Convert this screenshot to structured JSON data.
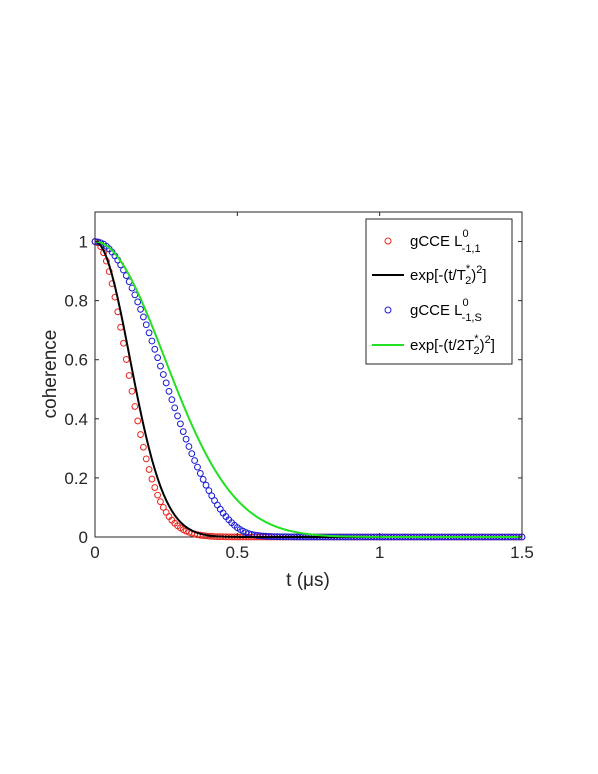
{
  "chart_data": {
    "type": "scatter",
    "xlabel": "t (μs)",
    "ylabel": "coherence",
    "xlim": [
      0,
      1.5
    ],
    "ylim": [
      0,
      1.1
    ],
    "xticks": [
      0,
      0.5,
      1,
      1.5
    ],
    "xtick_labels": [
      "0",
      "0.5",
      "1",
      "1.5"
    ],
    "yticks": [
      0,
      0.2,
      0.4,
      0.6,
      0.8,
      1
    ],
    "ytick_labels": [
      "0",
      "0.2",
      "0.4",
      "0.6",
      "0.8",
      "1"
    ],
    "grid": false,
    "legend_position": "top-right",
    "sample_x": [
      0,
      0.01,
      0.02,
      0.03,
      0.04,
      0.05,
      0.06,
      0.07,
      0.08,
      0.09,
      0.1,
      0.11,
      0.12,
      0.13,
      0.14,
      0.15,
      0.16,
      0.17,
      0.18,
      0.19,
      0.2,
      0.21,
      0.22,
      0.23,
      0.24,
      0.25,
      0.26,
      0.27,
      0.28,
      0.29,
      0.3,
      0.31,
      0.32,
      0.33,
      0.34,
      0.35,
      0.36,
      0.37,
      0.38,
      0.39,
      0.4,
      0.41,
      0.42,
      0.43,
      0.44,
      0.45,
      0.46,
      0.47,
      0.48,
      0.49,
      0.5,
      0.51,
      0.52,
      0.53,
      0.54,
      0.55,
      0.56,
      0.57,
      0.58,
      0.59,
      0.6,
      0.61,
      0.62,
      0.63,
      0.64,
      0.65,
      0.66,
      0.67,
      0.68,
      0.69,
      0.7,
      0.71,
      0.72,
      0.73,
      0.74,
      0.75,
      0.76,
      0.77,
      0.78,
      0.79,
      0.8,
      0.81,
      0.82,
      0.83,
      0.84,
      0.85,
      0.86,
      0.87,
      0.88,
      0.89,
      0.9,
      0.91,
      0.92,
      0.93,
      0.94,
      0.95,
      0.96,
      0.97,
      0.98,
      0.99,
      1,
      1.01,
      1.02,
      1.03,
      1.04,
      1.05,
      1.06,
      1.07,
      1.08,
      1.09,
      1.1,
      1.11,
      1.12,
      1.13,
      1.14,
      1.15,
      1.16,
      1.17,
      1.18,
      1.19,
      1.2,
      1.21,
      1.22,
      1.23,
      1.24,
      1.25,
      1.26,
      1.27,
      1.28,
      1.29,
      1.3,
      1.31,
      1.32,
      1.33,
      1.34,
      1.35,
      1.36,
      1.37,
      1.38,
      1.39,
      1.4,
      1.41,
      1.42,
      1.43,
      1.44,
      1.45,
      1.46,
      1.47,
      1.48,
      1.49,
      1.5
    ],
    "series": [
      {
        "name": "gCCE L⁰₋₁,₁",
        "legend_main": "gCCE L",
        "legend_sup": "0",
        "legend_sub": "-1,1",
        "kind": "markers",
        "color": "#e8241c",
        "values": [
          1.0,
          0.9957,
          0.9829,
          0.9621,
          0.9337,
          0.8986,
          0.8576,
          0.8118,
          0.7621,
          0.7097,
          0.6557,
          0.601,
          0.5465,
          0.4933,
          0.4418,
          0.3928,
          0.3467,
          0.3038,
          0.2644,
          0.2285,
          0.1961,
          0.1673,
          0.1418,
          0.1195,
          0.1001,
          0.0834,
          0.0691,
          0.0569,
          0.0466,
          0.038,
          0.0308,
          0.0249,
          0.02,
          0.016,
          0.0127,
          0.0101,
          0.0079,
          0.0062,
          0.0049,
          0.0038,
          0.0029,
          0.0023,
          0.0017,
          0.0013,
          0.001,
          0.0008,
          0.0006,
          0.0004,
          0.0003,
          0.0003,
          0.0002,
          0.0001,
          0.0001,
          0.0001,
          0.0001,
          0.0,
          0.0,
          0.0,
          0.0,
          0.0,
          0.0,
          0.0,
          0.0,
          0.0,
          0.0,
          0.0,
          0.0,
          0.0,
          0.0,
          0.0,
          0.0,
          0.0,
          0.0,
          0.0,
          0.0,
          0.0,
          0.0,
          0.0,
          0.0,
          0.0,
          0.0,
          0.0,
          0.0,
          0.0,
          0.0,
          0.0,
          0.0,
          0.0,
          0.0,
          0.0,
          0.0,
          0.0,
          0.0,
          0.0,
          0.0,
          0.0,
          0.0,
          0.0,
          0.0,
          0.0,
          0.0,
          0.0,
          0.0,
          0.0,
          0.0,
          0.0,
          0.0,
          0.0,
          0.0,
          0.0,
          0.0,
          0.0,
          0.0,
          0.0,
          0.0,
          0.0,
          0.0,
          0.0,
          0.0,
          0.0,
          0.0,
          0.0,
          0.0,
          0.0,
          0.0,
          0.0,
          0.0,
          0.0,
          0.0,
          0.0,
          0.0,
          0.0,
          0.0,
          0.0,
          0.0,
          0.0,
          0.0,
          0.0,
          0.0,
          0.0,
          0.0,
          0.0,
          0.0,
          0.0,
          0.0,
          0.0,
          0.0,
          0.0,
          0.0,
          0.0,
          0.0
        ]
      },
      {
        "name": "exp[-(t/T₂*)²]",
        "legend_main": "exp[-(t/T",
        "legend_sup": "*",
        "legend_sub": "2",
        "legend_tail": ")",
        "legend_tail_sup": "2",
        "legend_end": "]",
        "kind": "line",
        "color": "#000000",
        "values": [
          1.0,
          0.9966,
          0.9866,
          0.9702,
          0.9477,
          0.9196,
          0.8863,
          0.8486,
          0.8071,
          0.7624,
          0.7155,
          0.6669,
          0.6175,
          0.568,
          0.5189,
          0.4708,
          0.4244,
          0.38,
          0.338,
          0.2987,
          0.2623,
          0.2289,
          0.1985,
          0.171,
          0.1464,
          0.1246,
          0.1054,
          0.0885,
          0.0739,
          0.0613,
          0.0506,
          0.0415,
          0.0338,
          0.0274,
          0.022,
          0.0176,
          0.014,
          0.011,
          0.0087,
          0.0068,
          0.0052,
          0.004,
          0.0031,
          0.0023,
          0.0018,
          0.0013,
          0.001,
          0.0007,
          0.0005,
          0.0004,
          0.0003,
          0.0002,
          0.0001,
          0.0001,
          0.0001,
          0.0,
          0.0,
          0.0,
          0.0,
          0.0,
          0.0,
          0.0,
          0.0,
          0.0,
          0.0,
          0.0,
          0.0,
          0.0,
          0.0,
          0.0,
          0.0,
          0.0,
          0.0,
          0.0,
          0.0,
          0.0,
          0.0,
          0.0,
          0.0,
          0.0,
          0.0,
          0.0,
          0.0,
          0.0,
          0.0,
          0.0,
          0.0,
          0.0,
          0.0,
          0.0,
          0.0,
          0.0,
          0.0,
          0.0,
          0.0,
          0.0,
          0.0,
          0.0,
          0.0,
          0.0,
          0.0,
          0.0,
          0.0,
          0.0,
          0.0,
          0.0,
          0.0,
          0.0,
          0.0,
          0.0,
          0.0,
          0.0,
          0.0,
          0.0,
          0.0,
          0.0,
          0.0,
          0.0,
          0.0,
          0.0,
          0.0,
          0.0,
          0.0,
          0.0,
          0.0,
          0.0,
          0.0,
          0.0,
          0.0,
          0.0,
          0.0,
          0.0,
          0.0,
          0.0,
          0.0,
          0.0,
          0.0,
          0.0,
          0.0,
          0.0,
          0.0,
          0.0,
          0.0,
          0.0,
          0.0,
          0.0,
          0.0,
          0.0,
          0.0,
          0.0,
          0.0
        ]
      },
      {
        "name": "gCCE L⁰₋₁,S",
        "legend_main": "gCCE L",
        "legend_sup": "0",
        "legend_sub": "-1,S",
        "kind": "markers",
        "color": "#1a1ad6",
        "values": [
          1.0,
          0.999,
          0.996,
          0.991,
          0.984,
          0.975,
          0.9642,
          0.9516,
          0.9373,
          0.9213,
          0.9037,
          0.8847,
          0.8643,
          0.8425,
          0.8196,
          0.7956,
          0.7707,
          0.7448,
          0.7183,
          0.6911,
          0.6634,
          0.6353,
          0.607,
          0.5784,
          0.5499,
          0.5214,
          0.493,
          0.4649,
          0.4371,
          0.4098,
          0.383,
          0.3567,
          0.3311,
          0.3062,
          0.2821,
          0.2589,
          0.2365,
          0.2152,
          0.1948,
          0.1754,
          0.157,
          0.1397,
          0.1234,
          0.1082,
          0.0941,
          0.0811,
          0.0692,
          0.0583,
          0.0485,
          0.0397,
          0.032,
          0.0253,
          0.0197,
          0.0151,
          0.0115,
          0.0088,
          0.0068,
          0.0053,
          0.0042,
          0.0033,
          0.0027,
          0.0021,
          0.0017,
          0.0014,
          0.0011,
          0.0009,
          0.0007,
          0.0006,
          0.0005,
          0.0004,
          0.0003,
          0.0003,
          0.0002,
          0.0002,
          0.0001,
          0.0001,
          0.0001,
          0.0001,
          0.0001,
          0.0,
          0.0,
          0.0,
          0.0,
          0.0,
          0.0,
          0.0,
          0.0,
          0.0,
          0.0,
          0.0,
          0.0,
          0.0,
          0.0,
          0.0,
          0.0,
          0.0,
          0.0,
          0.0,
          0.0,
          0.0,
          0.0,
          0.0,
          0.0,
          0.0,
          0.0,
          0.0,
          0.0,
          0.0,
          0.0,
          0.0,
          0.0,
          0.0,
          0.0,
          0.0,
          0.0,
          0.0,
          0.0,
          0.0,
          0.0,
          0.0,
          0.0,
          0.0,
          0.0,
          0.0,
          0.0,
          0.0,
          0.0,
          0.0,
          0.0,
          0.0,
          0.0,
          0.0,
          0.0,
          0.0,
          0.0,
          0.0,
          0.0,
          0.0,
          0.0,
          0.0,
          0.0,
          0.0,
          0.0,
          0.0,
          0.0,
          0.0,
          0.0,
          0.0,
          0.0,
          0.0,
          0.0
        ]
      },
      {
        "name": "exp[-(t/2T₂*)²]",
        "legend_main": "exp[-(t/2T",
        "legend_sup": "*",
        "legend_sub": "2",
        "legend_tail": ")",
        "legend_tail_sup": "2",
        "legend_end": "]",
        "kind": "line",
        "color": "#22e022",
        "values": [
          1.0,
          0.9991,
          0.9966,
          0.9924,
          0.9866,
          0.9792,
          0.9702,
          0.9598,
          0.9477,
          0.9343,
          0.9196,
          0.9035,
          0.8863,
          0.8679,
          0.8486,
          0.8283,
          0.8071,
          0.7851,
          0.7624,
          0.7392,
          0.7155,
          0.6913,
          0.6669,
          0.6423,
          0.6175,
          0.5928,
          0.568,
          0.5434,
          0.5189,
          0.4947,
          0.4708,
          0.4474,
          0.4244,
          0.4019,
          0.38,
          0.3587,
          0.338,
          0.318,
          0.2987,
          0.2802,
          0.2623,
          0.2452,
          0.2289,
          0.2134,
          0.1985,
          0.1844,
          0.171,
          0.1584,
          0.1464,
          0.1352,
          0.1246,
          0.1147,
          0.1054,
          0.0967,
          0.0885,
          0.0809,
          0.0739,
          0.0673,
          0.0613,
          0.0557,
          0.0506,
          0.0458,
          0.0415,
          0.0375,
          0.0338,
          0.0305,
          0.0274,
          0.0246,
          0.022,
          0.0197,
          0.0176,
          0.0157,
          0.014,
          0.0124,
          0.011,
          0.0098,
          0.0087,
          0.0077,
          0.0068,
          0.006,
          0.0052,
          0.0046,
          0.004,
          0.0035,
          0.0031,
          0.0027,
          0.0023,
          0.002,
          0.0018,
          0.0015,
          0.0013,
          0.0011,
          0.001,
          0.0008,
          0.0007,
          0.0006,
          0.0005,
          0.0005,
          0.0004,
          0.0003,
          0.0003,
          0.0002,
          0.0002,
          0.0002,
          0.0001,
          0.0001,
          0.0001,
          0.0001,
          0.0001,
          0.0001,
          0.0001,
          0.0,
          0.0,
          0.0,
          0.0,
          0.0,
          0.0,
          0.0,
          0.0,
          0.0,
          0.0,
          0.0,
          0.0,
          0.0,
          0.0,
          0.0,
          0.0,
          0.0,
          0.0,
          0.0,
          0.0,
          0.0,
          0.0,
          0.0,
          0.0,
          0.0,
          0.0,
          0.0,
          0.0,
          0.0,
          0.0,
          0.0,
          0.0,
          0.0,
          0.0,
          0.0,
          0.0,
          0.0,
          0.0,
          0.0,
          0.0
        ]
      }
    ]
  }
}
